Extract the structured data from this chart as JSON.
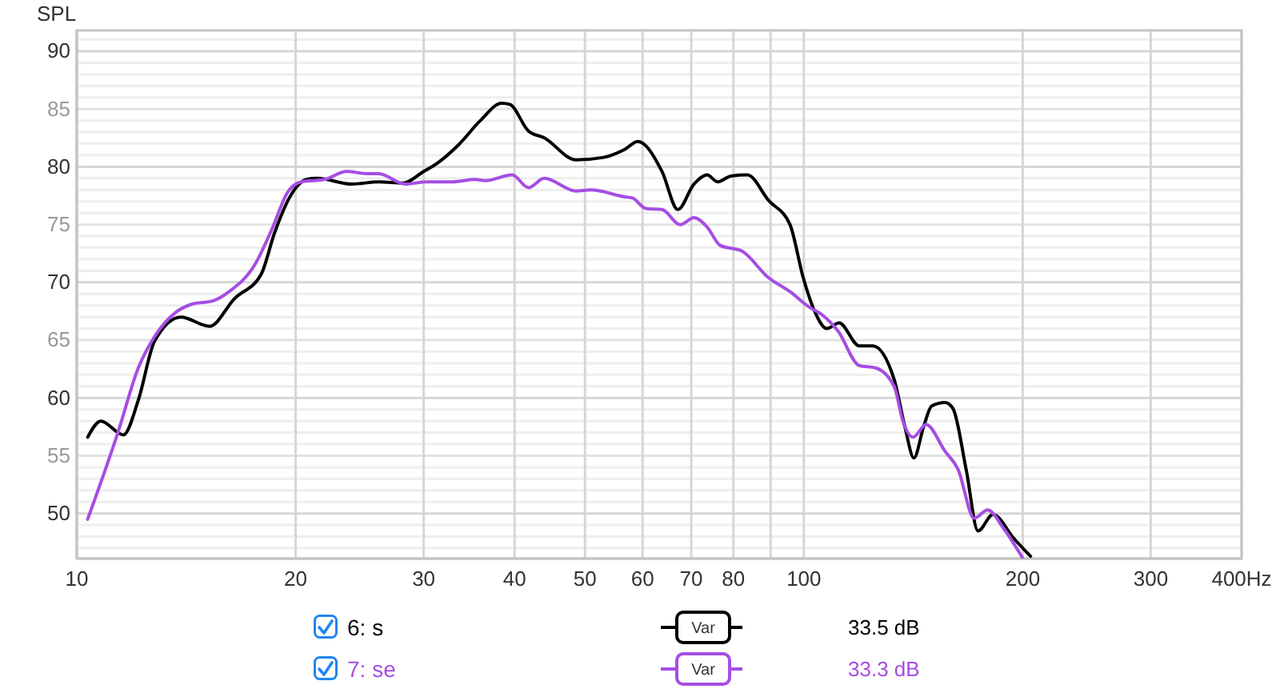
{
  "chart_data": {
    "type": "line",
    "ylabel": "SPL",
    "xlim": [
      10,
      400
    ],
    "xticks": [
      10,
      20,
      30,
      40,
      50,
      60,
      70,
      80,
      {
        "value": 90,
        "label": null
      },
      100,
      200,
      300,
      {
        "value": 400,
        "label": "400Hz"
      }
    ],
    "log": "x",
    "ylim": [
      46.1,
      91.8
    ],
    "yticks": [
      {
        "value": 47,
        "label": null
      },
      {
        "value": 48,
        "label": null
      },
      {
        "value": 49,
        "label": null
      },
      50,
      {
        "value": 51,
        "label": null
      },
      {
        "value": 52,
        "label": null
      },
      {
        "value": 53,
        "label": null
      },
      {
        "value": 54,
        "label": null
      },
      55,
      {
        "value": 56,
        "label": null
      },
      {
        "value": 57,
        "label": null
      },
      {
        "value": 58,
        "label": null
      },
      {
        "value": 59,
        "label": null
      },
      60,
      {
        "value": 61,
        "label": null
      },
      {
        "value": 62,
        "label": null
      },
      {
        "value": 63,
        "label": null
      },
      {
        "value": 64,
        "label": null
      },
      65,
      {
        "value": 66,
        "label": null
      },
      {
        "value": 67,
        "label": null
      },
      {
        "value": 68,
        "label": null
      },
      {
        "value": 69,
        "label": null
      },
      70,
      {
        "value": 71,
        "label": null
      },
      {
        "value": 72,
        "label": null
      },
      {
        "value": 73,
        "label": null
      },
      {
        "value": 74,
        "label": null
      },
      75,
      {
        "value": 76,
        "label": null
      },
      {
        "value": 77,
        "label": null
      },
      {
        "value": 78,
        "label": null
      },
      {
        "value": 79,
        "label": null
      },
      80,
      {
        "value": 81,
        "label": null
      },
      {
        "value": 82,
        "label": null
      },
      {
        "value": 83,
        "label": null
      },
      {
        "value": 84,
        "label": null
      },
      85,
      {
        "value": 86,
        "label": null
      },
      {
        "value": 87,
        "label": null
      },
      {
        "value": 88,
        "label": null
      },
      {
        "value": 89,
        "label": null
      },
      90,
      {
        "value": 91,
        "label": null
      }
    ],
    "grid": true,
    "legend": "bottom",
    "annotations": [
      "Var",
      "33.5 dB",
      "Var",
      "33.3 dB"
    ],
    "series": [
      {
        "name": "6: s",
        "color": "#000000",
        "x": [
          10.35,
          10.79,
          11.59,
          12.15,
          12.79,
          13.91,
          15.22,
          16.48,
          17.93,
          18.71,
          19.68,
          20.7,
          21.41,
          23.9,
          26.0,
          28.1,
          30.0,
          31.3,
          33.5,
          35.9,
          38.4,
          39.4,
          41.8,
          43.95,
          48.6,
          52.9,
          56.7,
          59.1,
          63.8,
          67.1,
          70.6,
          73.6,
          76.1,
          79.4,
          83.6,
          89.4,
          95.7,
          99.8,
          103.3,
          107.6,
          111.8,
          119.2,
          124.4,
          133.1,
          137.7,
          141.7,
          146.1,
          149.9,
          156.3,
          160.3,
          167.2,
          173.6,
          182,
          194.7,
          205
        ],
        "values": [
          56.6,
          58.0,
          56.8,
          59.8,
          64.9,
          67.0,
          66.2,
          68.6,
          70.7,
          74.3,
          77.5,
          78.9,
          79.0,
          78.5,
          78.7,
          78.6,
          79.6,
          80.3,
          81.9,
          84.0,
          85.5,
          85.4,
          83.1,
          82.5,
          80.6,
          80.8,
          81.5,
          82.2,
          79.6,
          76.3,
          78.5,
          79.3,
          78.7,
          79.2,
          79.3,
          77.1,
          75.0,
          70.4,
          67.6,
          66.0,
          66.5,
          64.5,
          64.5,
          61.6,
          57.5,
          54.8,
          57.5,
          59.3,
          59.6,
          59.1,
          53.8,
          48.5,
          49.9,
          47.8,
          46.3
        ]
      },
      {
        "name": "7: se",
        "color": "#a64de3",
        "x": [
          10.35,
          11.39,
          12.15,
          12.79,
          13.68,
          14.38,
          15.4,
          16.2,
          17.6,
          18.55,
          19.5,
          20.35,
          21.9,
          23.5,
          25.1,
          26.0,
          28.3,
          30.3,
          32.9,
          35.3,
          36.5,
          39.7,
          41.8,
          43.95,
          48.6,
          50.9,
          56.7,
          58.1,
          60.6,
          63.8,
          67.6,
          70.6,
          73.6,
          76.7,
          82.2,
          89.4,
          95.7,
          101.5,
          105.9,
          111.4,
          119.2,
          125.5,
          133.1,
          137,
          141.3,
          147.3,
          156.3,
          163,
          171.5,
          178.9,
          188.3,
          199.7
        ],
        "values": [
          49.5,
          57.0,
          62.6,
          65.3,
          67.4,
          68.1,
          68.4,
          69.2,
          71.6,
          74.6,
          77.8,
          78.7,
          78.9,
          79.6,
          79.4,
          79.4,
          78.5,
          78.7,
          78.7,
          78.9,
          78.8,
          79.3,
          78.2,
          79.0,
          77.9,
          78.0,
          77.4,
          77.3,
          76.4,
          76.3,
          75.0,
          75.6,
          74.8,
          73.2,
          72.7,
          70.4,
          69.2,
          67.9,
          67.2,
          65.8,
          62.8,
          62.6,
          61.0,
          57.9,
          56.6,
          57.7,
          55.4,
          53.8,
          49.6,
          50.3,
          48.7,
          46.2
        ]
      }
    ]
  }
}
